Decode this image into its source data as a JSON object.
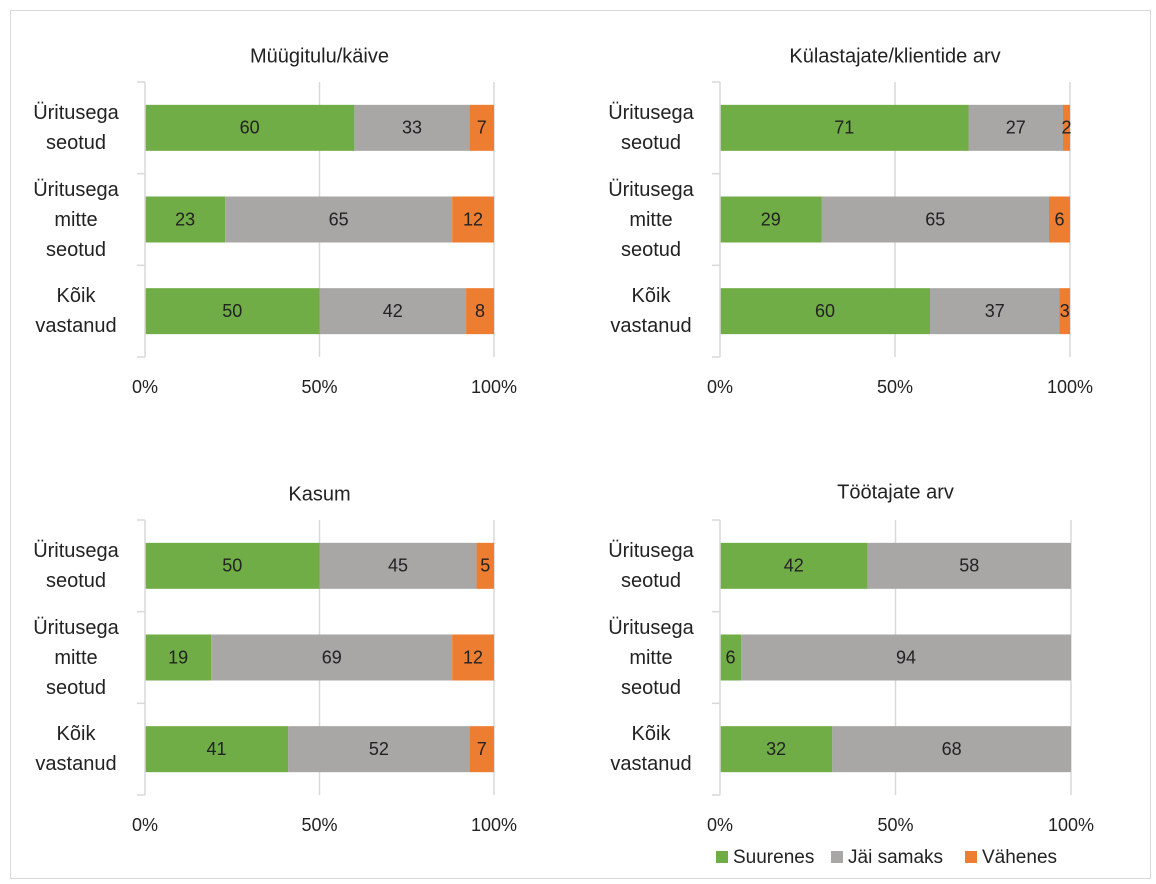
{
  "chart_data": [
    {
      "type": "stacked_bar_horizontal",
      "title": "Müügitulu/käive",
      "categories": [
        "Üritusega seotud",
        "Üritusega mitte seotud",
        "Kõik vastanud"
      ],
      "series": [
        {
          "name": "Suurenes",
          "color": "#70ad47",
          "values": [
            60,
            23,
            50
          ]
        },
        {
          "name": "Jäi samaks",
          "color": "#a9a6a6",
          "values": [
            33,
            65,
            42
          ]
        },
        {
          "name": "Vähenes",
          "color": "#ed7d31",
          "values": [
            7,
            12,
            8
          ]
        }
      ],
      "xlim": [
        0,
        100
      ],
      "xticks": [
        {
          "value": 0,
          "label": "0%"
        },
        {
          "value": 50,
          "label": "50%"
        },
        {
          "value": 100,
          "label": "100%"
        }
      ],
      "grid": true
    },
    {
      "type": "stacked_bar_horizontal",
      "title": "Külastajate/klientide arv",
      "categories": [
        "Üritusega seotud",
        "Üritusega mitte seotud",
        "Kõik vastanud"
      ],
      "series": [
        {
          "name": "Suurenes",
          "color": "#70ad47",
          "values": [
            71,
            29,
            60
          ]
        },
        {
          "name": "Jäi samaks",
          "color": "#a9a6a6",
          "values": [
            27,
            65,
            37
          ]
        },
        {
          "name": "Vähenes",
          "color": "#ed7d31",
          "values": [
            2,
            6,
            3
          ]
        }
      ],
      "xlim": [
        0,
        100
      ],
      "xticks": [
        {
          "value": 0,
          "label": "0%"
        },
        {
          "value": 50,
          "label": "50%"
        },
        {
          "value": 100,
          "label": "100%"
        }
      ],
      "grid": true
    },
    {
      "type": "stacked_bar_horizontal",
      "title": "Kasum",
      "categories": [
        "Üritusega seotud",
        "Üritusega mitte seotud",
        "Kõik vastanud"
      ],
      "series": [
        {
          "name": "Suurenes",
          "color": "#70ad47",
          "values": [
            50,
            19,
            41
          ]
        },
        {
          "name": "Jäi samaks",
          "color": "#a9a6a6",
          "values": [
            45,
            69,
            52
          ]
        },
        {
          "name": "Vähenes",
          "color": "#ed7d31",
          "values": [
            5,
            12,
            7
          ]
        }
      ],
      "xlim": [
        0,
        100
      ],
      "xticks": [
        {
          "value": 0,
          "label": "0%"
        },
        {
          "value": 50,
          "label": "50%"
        },
        {
          "value": 100,
          "label": "100%"
        }
      ],
      "grid": true
    },
    {
      "type": "stacked_bar_horizontal",
      "title": "Töötajate arv",
      "categories": [
        "Üritusega seotud",
        "Üritusega mitte seotud",
        "Kõik vastanud"
      ],
      "series": [
        {
          "name": "Suurenes",
          "color": "#70ad47",
          "values": [
            42,
            6,
            32
          ]
        },
        {
          "name": "Jäi samaks",
          "color": "#a9a6a6",
          "values": [
            58,
            94,
            68
          ]
        },
        {
          "name": "Vähenes",
          "color": "#ed7d31",
          "values": [
            0,
            0,
            0
          ]
        }
      ],
      "xlim": [
        0,
        100
      ],
      "xticks": [
        {
          "value": 0,
          "label": "0%"
        },
        {
          "value": 50,
          "label": "50%"
        },
        {
          "value": 100,
          "label": "100%"
        }
      ],
      "grid": true,
      "legend": "bottom-right"
    }
  ]
}
